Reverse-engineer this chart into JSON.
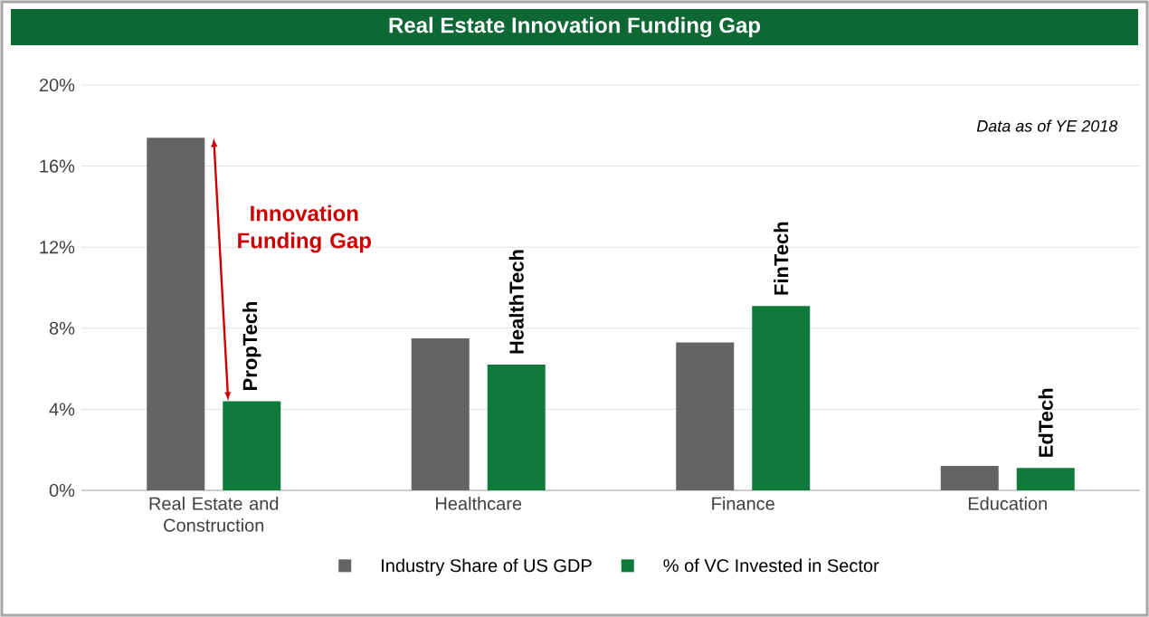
{
  "chart_data": {
    "type": "bar",
    "title": "Real Estate Innovation Funding Gap",
    "categories": [
      "Real Estate and Construction",
      "Healthcare",
      "Finance",
      "Education"
    ],
    "series": [
      {
        "name": "Industry Share of US GDP",
        "color": "#636466",
        "values": [
          17.4,
          7.5,
          7.3,
          1.2
        ]
      },
      {
        "name": "% of VC Invested in Sector",
        "color": "#0f7a3c",
        "values": [
          4.4,
          6.2,
          9.1,
          1.1
        ]
      }
    ],
    "ylim": [
      0,
      20
    ],
    "yticks": [
      {
        "value": 0,
        "label": "0%"
      },
      {
        "value": 4,
        "label": "4%"
      },
      {
        "value": 8,
        "label": "8%"
      },
      {
        "value": 12,
        "label": "12%"
      },
      {
        "value": 16,
        "label": "16%"
      },
      {
        "value": 20,
        "label": "20%"
      }
    ],
    "grid": "y",
    "legend": "bottom",
    "annotations": [
      "Data as of YE 2018",
      "Innovation Funding Gap",
      {
        "text": "PropTech",
        "x": "Real Estate and Construction",
        "y": 4.4
      },
      {
        "text": "HealthTech",
        "x": "Healthcare",
        "y": 6.2
      },
      {
        "text": "FinTech",
        "x": "Finance",
        "y": 9.1
      },
      {
        "text": "EdTech",
        "x": "Education",
        "y": 1.1
      }
    ]
  }
}
